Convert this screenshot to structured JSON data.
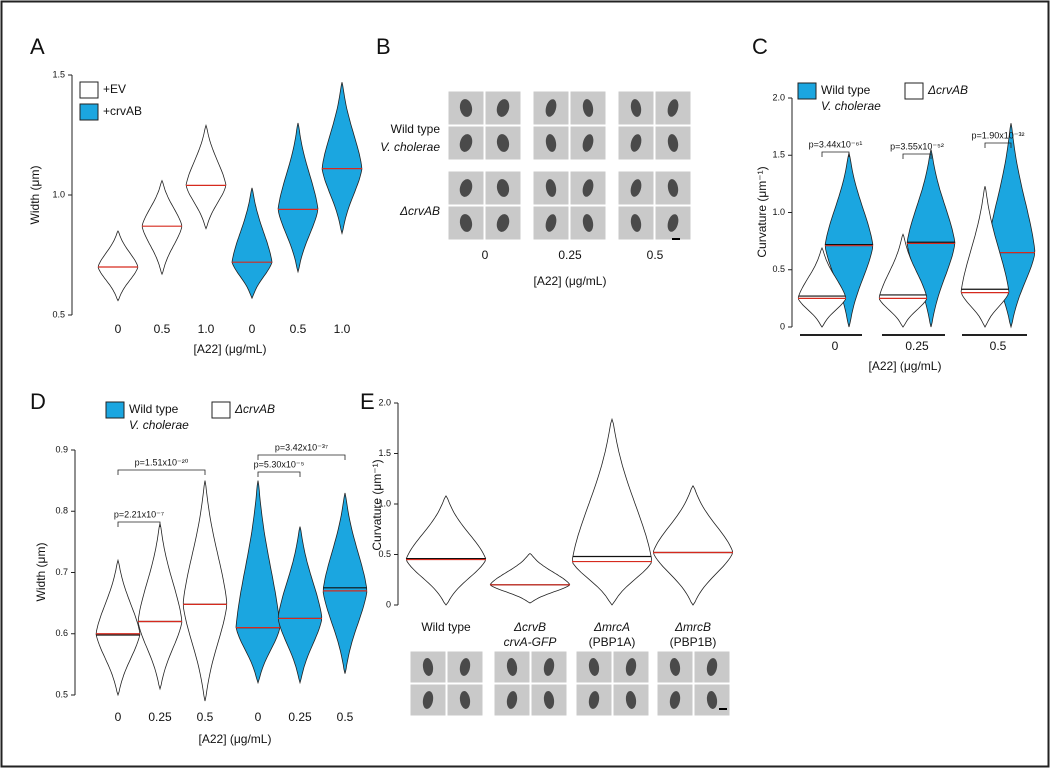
{
  "chart_data": [
    {
      "panel": "A",
      "type": "violin",
      "ylabel": "Width (μm)",
      "xlabel": "[A22] (μg/mL)",
      "ylim": [
        0.5,
        1.5
      ],
      "yticks": [
        0.5,
        {
          "value": 1,
          "label": "1.0"
        },
        1.5
      ],
      "categories": [
        "0",
        "0.5",
        "1.0",
        "0",
        "0.5",
        "1.0"
      ],
      "series": [
        {
          "name": [
            "+EV"
          ],
          "color": "#ffffff",
          "values": [
            0.7,
            0.87,
            1.04,
            null,
            null,
            null
          ],
          "min": [
            0.56,
            0.67,
            0.86,
            null,
            null,
            null
          ],
          "max": [
            0.85,
            1.06,
            1.29,
            null,
            null,
            null
          ]
        },
        {
          "name": [
            "+crvAB"
          ],
          "color": "#1ba6e0",
          "values": [
            null,
            null,
            null,
            0.72,
            0.94,
            1.11
          ],
          "min": [
            null,
            null,
            null,
            0.57,
            0.68,
            0.84
          ],
          "max": [
            null,
            null,
            null,
            1.03,
            1.3,
            1.47
          ]
        }
      ]
    },
    {
      "panel": "C",
      "type": "violin",
      "ylabel": "Curvature (μm⁻¹)",
      "xlabel": "[A22] (μg/mL)",
      "ylim": [
        0,
        2
      ],
      "yticks": [
        0,
        0.5,
        {
          "value": 1,
          "label": "1.0"
        },
        1.5,
        {
          "value": 2,
          "label": "2.0"
        }
      ],
      "categories": [
        "0",
        "0.25",
        "0.5"
      ],
      "series": [
        {
          "name": [
            "Wild type",
            "V. cholerae"
          ],
          "color": "#1ba6e0",
          "values": [
            0.71,
            0.73,
            0.65
          ],
          "means": [
            0.72,
            0.74,
            0.65
          ],
          "min": [
            0,
            0,
            0
          ],
          "max": [
            1.52,
            1.55,
            1.78
          ]
        },
        {
          "name": [
            "ΔcrvAB"
          ],
          "color": "#ffffff",
          "values": [
            0.25,
            0.25,
            0.3
          ],
          "means": [
            0.27,
            0.28,
            0.33
          ],
          "min": [
            0,
            0,
            0
          ],
          "max": [
            0.69,
            0.81,
            1.23
          ]
        }
      ],
      "annotations": [
        "p=3.44x10⁻⁶¹",
        "p=3.55x10⁻⁵²",
        "p=1.90x10⁻³²"
      ]
    },
    {
      "panel": "D",
      "type": "violin",
      "ylabel": "Width (μm)",
      "xlabel": "[A22] (μg/mL)",
      "ylim": [
        0.5,
        0.9
      ],
      "yticks": [
        0.5,
        0.6,
        0.7,
        0.8,
        0.9
      ],
      "categories": [
        "0",
        "0.25",
        "0.5",
        "0",
        "0.25",
        "0.5"
      ],
      "series": [
        {
          "name": [
            "Wild type",
            "V. cholerae"
          ],
          "color": "#1ba6e0",
          "values": [
            null,
            null,
            null,
            0.61,
            0.625,
            0.67
          ],
          "means": [
            null,
            null,
            null,
            0.61,
            0.625,
            0.675
          ],
          "min": [
            null,
            null,
            null,
            0.52,
            0.52,
            0.535
          ],
          "max": [
            null,
            null,
            null,
            0.85,
            0.775,
            0.83
          ]
        },
        {
          "name": [
            "ΔcrvAB"
          ],
          "color": "#ffffff",
          "values": [
            0.6,
            0.62,
            0.648,
            null,
            null,
            null
          ],
          "means": [
            0.598,
            0.62,
            0.648,
            null,
            null,
            null
          ],
          "min": [
            0.5,
            0.51,
            0.49,
            null,
            null,
            null
          ],
          "max": [
            0.72,
            0.78,
            0.85,
            null,
            null,
            null
          ]
        }
      ],
      "annotations": [
        "p=2.21x10⁻⁷",
        "p=1.51x10⁻²⁰",
        "p=5.30x10⁻⁵",
        "p=3.42x10⁻³⁷"
      ]
    },
    {
      "panel": "E",
      "type": "violin",
      "ylabel": "Curvature (μm⁻¹)",
      "ylim": [
        0,
        2
      ],
      "yticks": [
        0,
        0.5,
        {
          "value": 1,
          "label": "1.0"
        },
        1.5,
        {
          "value": 2,
          "label": "2.0"
        }
      ],
      "categories": [
        [
          "Wild type"
        ],
        [
          "ΔcrvB",
          "crvA-GFP"
        ],
        [
          "ΔmrcA",
          "(PBP1A)"
        ],
        [
          "ΔmrcB",
          "(PBP1B)"
        ]
      ],
      "series": [
        {
          "color": "#ffffff",
          "values": [
            0.45,
            0.2,
            0.43,
            0.52
          ],
          "means": [
            0.46,
            0.2,
            0.48,
            0.52
          ],
          "min": [
            0,
            0.02,
            0,
            0
          ],
          "max": [
            1.08,
            0.51,
            1.84,
            1.18
          ]
        }
      ]
    }
  ],
  "panel_b": {
    "panel": "B",
    "rows": [
      [
        "Wild type",
        "V. cholerae"
      ],
      [
        "ΔcrvAB"
      ]
    ],
    "columns": [
      "0",
      "0.25",
      "0.5"
    ],
    "xlabel": "[A22] (μg/mL)"
  }
}
